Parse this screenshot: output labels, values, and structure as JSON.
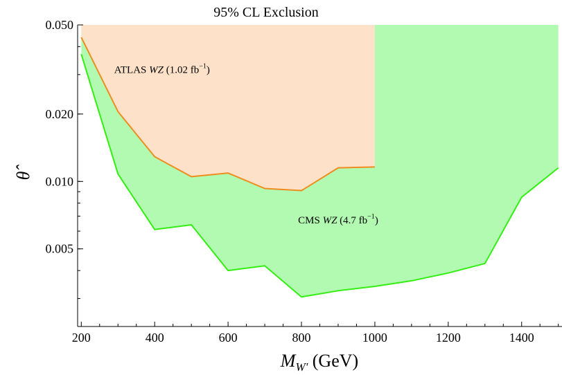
{
  "chart_data": {
    "type": "area",
    "title": "95% CL Exclusion",
    "xlabel": {
      "symbol": "M",
      "subscript": "W'",
      "unit": "(GeV)"
    },
    "ylabel": "θ̂",
    "xlim": [
      190,
      1510
    ],
    "ylim": [
      0.00225,
      0.05
    ],
    "yscale": "log",
    "x_ticks": [
      200,
      400,
      600,
      800,
      1000,
      1200,
      1400
    ],
    "x_tick_labels": [
      "200",
      "400",
      "600",
      "800",
      "1000",
      "1200",
      "1400"
    ],
    "y_ticks": [
      0.005,
      0.01,
      0.02,
      0.05
    ],
    "y_tick_labels": [
      "0.005",
      "0.010",
      "0.020",
      "0.050"
    ],
    "grid": false,
    "series": [
      {
        "name": "CMS WZ (4.7 fb⁻¹)",
        "label": {
          "pre": "CMS ",
          "ital": "WZ",
          "mid": " (4.7 fb",
          "sup": "−1",
          "post": ")"
        },
        "label_at": [
          900,
          0.0065
        ],
        "line_color": "#33ee11",
        "fill_color": "#b2f9b2",
        "x": [
          200,
          300,
          400,
          500,
          600,
          700,
          800,
          900,
          1000,
          1100,
          1200,
          1300,
          1400,
          1500
        ],
        "y": [
          0.037,
          0.0108,
          0.0061,
          0.0064,
          0.004,
          0.0042,
          0.00305,
          0.00325,
          0.0034,
          0.0036,
          0.0039,
          0.0043,
          0.0085,
          0.0115
        ],
        "fill_to": 0.05
      },
      {
        "name": "ATLAS WZ (1.02 fb⁻¹)",
        "label": {
          "pre": "ATLAS ",
          "ital": "WZ",
          "mid": " (1.02 fb",
          "sup": "−1",
          "post": ")"
        },
        "label_at": [
          420,
          0.0305
        ],
        "line_color": "#f08c1e",
        "fill_color": "#fde2c9",
        "x": [
          200,
          300,
          400,
          500,
          600,
          700,
          800,
          900,
          1000
        ],
        "y": [
          0.044,
          0.0205,
          0.0129,
          0.0105,
          0.0109,
          0.0093,
          0.0091,
          0.0115,
          0.0116
        ],
        "fill_to": 0.05
      }
    ]
  }
}
